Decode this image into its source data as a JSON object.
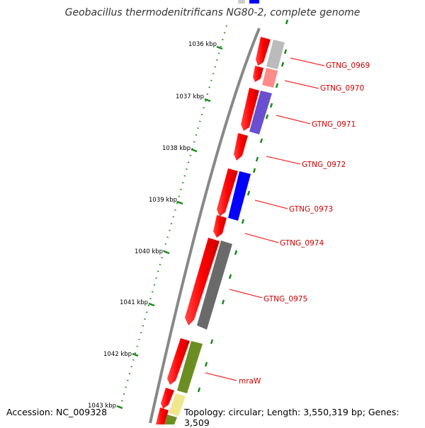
{
  "title": "Geobacillus thermodenitrificans NG80-2, complete genome",
  "accession": "Accession: NC_009328",
  "topology": "Topology: circular; Length: 3,550,319 bp; Genes: 3,509",
  "kbp_labels": [
    "1036 kbp",
    "1037 kbp",
    "1038 kbp",
    "1039 kbp",
    "1040 kbp",
    "1041 kbp",
    "1042 kbp",
    "1043 kbp"
  ],
  "genes": [
    {
      "name": "GTNG_0969",
      "color": "#bbbbbb"
    },
    {
      "name": "GTNG_0970",
      "color": "#ff8a8a"
    },
    {
      "name": "GTNG_0971",
      "color": "#6a4fd0"
    },
    {
      "name": "GTNG_0972",
      "color": ""
    },
    {
      "name": "GTNG_0973",
      "color": "#0000ff"
    },
    {
      "name": "GTNG_0974",
      "color": ""
    },
    {
      "name": "GTNG_0975",
      "color": "#6a6a6a"
    },
    {
      "name": "mraW",
      "color": "#6b8e23"
    }
  ],
  "colors": {
    "forward_strand": "#ff0000",
    "backbone": "#888888",
    "gc_skew": "#1a8a1a",
    "label": "#cc0000"
  }
}
